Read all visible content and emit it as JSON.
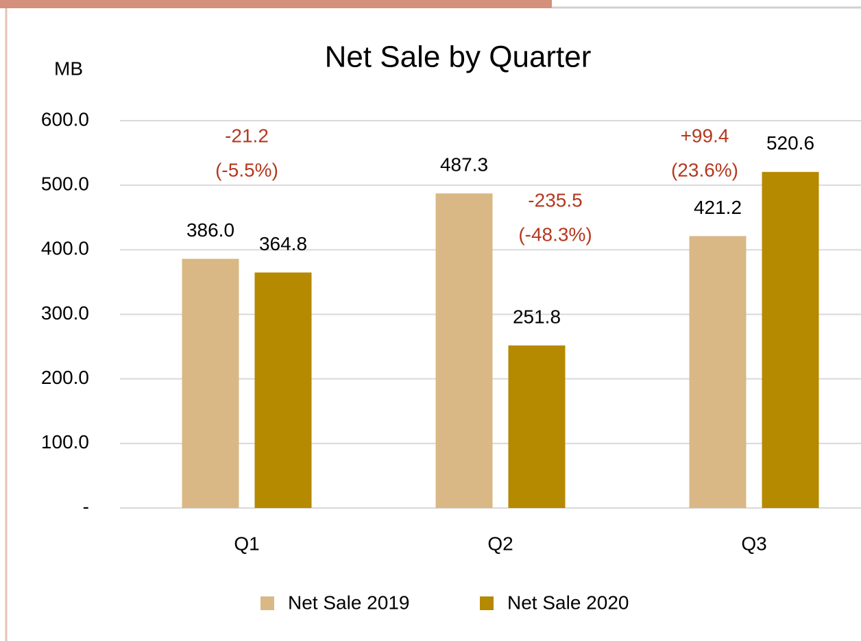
{
  "chart_data": {
    "type": "bar",
    "title": "Net Sale by Quarter",
    "y_label": "MB",
    "categories": [
      "Q1",
      "Q2",
      "Q3"
    ],
    "series": [
      {
        "name": "Net Sale 2019",
        "color": "#d9b886",
        "values": [
          386.0,
          487.3,
          421.2
        ],
        "value_labels": [
          "386.0",
          "487.3",
          "421.2"
        ]
      },
      {
        "name": "Net Sale 2020",
        "color": "#b58900",
        "values": [
          364.8,
          251.8,
          520.6
        ],
        "value_labels": [
          "364.8",
          "251.8",
          "520.6"
        ]
      }
    ],
    "annotations": [
      [
        "-21.2",
        "(-5.5%)"
      ],
      [
        "-235.5",
        "(-48.3%)"
      ],
      [
        "+99.4",
        "(23.6%)"
      ]
    ],
    "annotation_color": "#b5381f",
    "ylim": [
      0,
      600
    ],
    "yticks": [
      {
        "value": 0,
        "label": "-"
      },
      {
        "value": 100,
        "label": "100.0"
      },
      {
        "value": 200,
        "label": "200.0"
      },
      {
        "value": 300,
        "label": "300.0"
      },
      {
        "value": 400,
        "label": "400.0"
      },
      {
        "value": 500,
        "label": "500.0"
      },
      {
        "value": 600,
        "label": "600.0"
      }
    ],
    "grid": true,
    "legend": "bottom"
  }
}
